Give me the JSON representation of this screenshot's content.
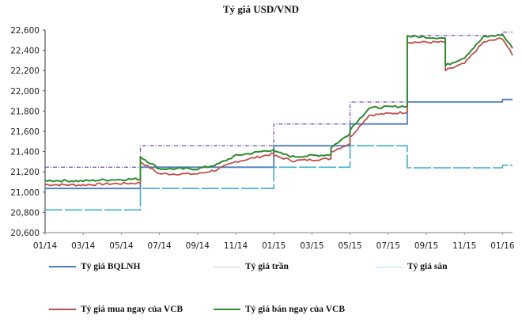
{
  "chart_data": {
    "type": "line",
    "title": "Tỷ giá USD/VND",
    "xlabel": "",
    "ylabel": "",
    "ylim": [
      20600,
      22600
    ],
    "yticks": [
      "22,600",
      "22,400",
      "22,200",
      "22,000",
      "21,800",
      "21,600",
      "21,400",
      "21,200",
      "21,000",
      "20,800",
      "20,600"
    ],
    "xticks": [
      "01/14",
      "03/14",
      "05/14",
      "07/14",
      "09/14",
      "11/14",
      "01/15",
      "03/15",
      "05/15",
      "07/15",
      "09/15",
      "11/15",
      "01/16"
    ],
    "grid": false,
    "legend_position": "bottom",
    "colors": {
      "bqlnh": "#4a7ebb",
      "tran": "#7f5fb7",
      "san": "#3fb0d0",
      "mua": "#c0504d",
      "ban": "#2e8b2e"
    },
    "series": [
      {
        "name": "Tỷ giá BQLNH",
        "style": "solid",
        "points": [
          [
            "01/14",
            21036
          ],
          [
            "06/14",
            21036
          ],
          [
            "06/14",
            21246
          ],
          [
            "01/15",
            21246
          ],
          [
            "01/15",
            21458
          ],
          [
            "05/15",
            21458
          ],
          [
            "05/15",
            21673
          ],
          [
            "08/15",
            21673
          ],
          [
            "08/15",
            21890
          ],
          [
            "01/16",
            21890
          ],
          [
            "01/16",
            21915
          ],
          [
            "02/16",
            21915
          ]
        ]
      },
      {
        "name": "Tỷ giá trần",
        "style": "dash-dot",
        "points": [
          [
            "01/14",
            21246
          ],
          [
            "06/14",
            21246
          ],
          [
            "06/14",
            21458
          ],
          [
            "01/15",
            21458
          ],
          [
            "01/15",
            21673
          ],
          [
            "05/15",
            21673
          ],
          [
            "05/15",
            21890
          ],
          [
            "08/15",
            21890
          ],
          [
            "08/15",
            22547
          ],
          [
            "01/16",
            22547
          ],
          [
            "01/16",
            22580
          ],
          [
            "02/16",
            22580
          ]
        ]
      },
      {
        "name": "Tỷ giá sàn",
        "style": "dashed",
        "points": [
          [
            "01/14",
            20824
          ],
          [
            "06/14",
            20824
          ],
          [
            "06/14",
            21036
          ],
          [
            "01/15",
            21036
          ],
          [
            "01/15",
            21246
          ],
          [
            "05/15",
            21246
          ],
          [
            "05/15",
            21458
          ],
          [
            "08/15",
            21458
          ],
          [
            "08/15",
            21240
          ],
          [
            "01/16",
            21240
          ],
          [
            "01/16",
            21265
          ],
          [
            "02/16",
            21265
          ]
        ]
      },
      {
        "name": "Tỷ giá mua ngay của VCB",
        "style": "solid",
        "points": [
          [
            "01/14",
            21075
          ],
          [
            "03/14",
            21070
          ],
          [
            "04/14",
            21080
          ],
          [
            "06/14",
            21090
          ],
          [
            "06/14",
            21300
          ],
          [
            "07/14",
            21180
          ],
          [
            "09/14",
            21180
          ],
          [
            "10/14",
            21220
          ],
          [
            "11/14",
            21300
          ],
          [
            "01/15",
            21380
          ],
          [
            "01/15",
            21360
          ],
          [
            "02/15",
            21310
          ],
          [
            "04/15",
            21330
          ],
          [
            "04/15",
            21400
          ],
          [
            "05/15",
            21480
          ],
          [
            "05/15",
            21540
          ],
          [
            "06/15",
            21760
          ],
          [
            "08/15",
            21790
          ],
          [
            "08/15",
            22080
          ],
          [
            "08/15",
            22480
          ],
          [
            "10/15",
            22480
          ],
          [
            "10/15",
            22200
          ],
          [
            "11/15",
            22270
          ],
          [
            "12/15",
            22480
          ],
          [
            "01/16",
            22520
          ],
          [
            "02/16",
            22350
          ]
        ]
      },
      {
        "name": "Tỷ giá bán ngay của VCB",
        "style": "solid",
        "points": [
          [
            "01/14",
            21115
          ],
          [
            "03/14",
            21110
          ],
          [
            "04/14",
            21120
          ],
          [
            "06/14",
            21130
          ],
          [
            "06/14",
            21350
          ],
          [
            "07/14",
            21230
          ],
          [
            "09/14",
            21230
          ],
          [
            "10/14",
            21270
          ],
          [
            "11/14",
            21360
          ],
          [
            "01/15",
            21420
          ],
          [
            "01/15",
            21400
          ],
          [
            "02/15",
            21350
          ],
          [
            "04/15",
            21370
          ],
          [
            "04/15",
            21440
          ],
          [
            "05/15",
            21580
          ],
          [
            "05/15",
            21620
          ],
          [
            "06/15",
            21830
          ],
          [
            "08/15",
            21850
          ],
          [
            "08/15",
            22120
          ],
          [
            "08/15",
            22540
          ],
          [
            "10/15",
            22520
          ],
          [
            "10/15",
            22250
          ],
          [
            "11/15",
            22330
          ],
          [
            "12/15",
            22530
          ],
          [
            "01/16",
            22555
          ],
          [
            "02/16",
            22420
          ]
        ]
      }
    ]
  },
  "legend": {
    "items": [
      {
        "label": "Tỷ giá BQLNH"
      },
      {
        "label": "Tỷ giá trần"
      },
      {
        "label": "Tỷ giá sàn"
      },
      {
        "label": "Tỷ giá mua ngay của VCB"
      },
      {
        "label": "Tỷ giá bán ngay của VCB"
      }
    ]
  }
}
